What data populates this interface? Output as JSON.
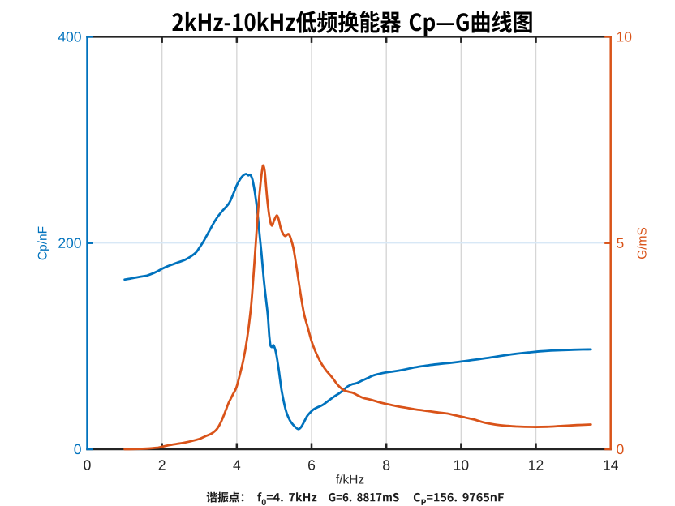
{
  "figure": {
    "background": "#ffffff",
    "title": "2kHz-10kHz低频换能器 Cp—G曲线图",
    "title_color": "#000000",
    "text_color": "#262626"
  },
  "chart_data": {
    "type": "line",
    "title": "2kHz-10kHz低频换能器 Cp—G曲线图",
    "xlabel": "f/kHz",
    "xlim": [
      0,
      14
    ],
    "xticks": [
      0,
      2,
      4,
      6,
      8,
      10,
      12,
      14
    ],
    "grid": {
      "x": [
        2,
        4,
        6,
        8,
        10,
        12
      ],
      "y_left": [
        200
      ]
    },
    "axes": {
      "left": {
        "label": "Cp/nF",
        "color": "#0072BD",
        "lim": [
          0,
          400
        ],
        "ticks": [
          0,
          200,
          400
        ]
      },
      "right": {
        "label": "G/mS",
        "color": "#D95319",
        "lim": [
          0,
          10
        ],
        "ticks": [
          0,
          5,
          10
        ]
      }
    },
    "series": [
      {
        "name": "Cp",
        "axis": "left",
        "color": "#0072BD",
        "x": [
          1.0,
          1.15,
          1.3,
          1.45,
          1.6,
          1.75,
          1.9,
          2.0,
          2.15,
          2.3,
          2.45,
          2.6,
          2.75,
          2.9,
          3.0,
          3.1,
          3.2,
          3.3,
          3.4,
          3.5,
          3.6,
          3.7,
          3.8,
          3.9,
          4.0,
          4.1,
          4.18,
          4.25,
          4.31,
          4.36,
          4.42,
          4.48,
          4.54,
          4.6,
          4.66,
          4.72,
          4.78,
          4.83,
          4.87,
          4.9,
          4.94,
          4.98,
          5.02,
          5.06,
          5.1,
          5.15,
          5.2,
          5.27,
          5.34,
          5.42,
          5.5,
          5.58,
          5.65,
          5.72,
          5.8,
          5.88,
          5.96,
          6.05,
          6.15,
          6.3,
          6.45,
          6.6,
          6.75,
          6.87,
          6.97,
          7.08,
          7.2,
          7.35,
          7.5,
          7.65,
          7.8,
          8.0,
          8.2,
          8.45,
          8.7,
          8.95,
          9.2,
          9.45,
          9.7,
          10.0,
          10.3,
          10.6,
          10.9,
          11.2,
          11.5,
          11.8,
          12.1,
          12.4,
          12.7,
          13.0,
          13.25,
          13.47
        ],
        "y": [
          164.5,
          165.5,
          166.5,
          167.5,
          168.5,
          170.5,
          173,
          175,
          177.5,
          179.5,
          181.5,
          183.5,
          186.5,
          190.5,
          195.5,
          201,
          207.5,
          214,
          220.5,
          226,
          230.5,
          234.5,
          239,
          247,
          256,
          262.5,
          265.8,
          267,
          265.6,
          266.2,
          261.5,
          250,
          234,
          212,
          190,
          166,
          146,
          130,
          110,
          101,
          99,
          101,
          97.5,
          91.5,
          83,
          70,
          57,
          44,
          34.5,
          28,
          24,
          21,
          19.5,
          21.5,
          26.5,
          32,
          35.5,
          38.5,
          40.5,
          43,
          47,
          51,
          54.5,
          58,
          61,
          63,
          64,
          66.5,
          69,
          71.5,
          73,
          74.5,
          75.5,
          77,
          79,
          80.5,
          81.8,
          82.8,
          83.7,
          85,
          86.5,
          88,
          89.6,
          91.2,
          92.7,
          93.8,
          94.9,
          95.6,
          96.1,
          96.5,
          96.7,
          96.8
        ]
      },
      {
        "name": "G",
        "axis": "right",
        "color": "#D95319",
        "x": [
          1.0,
          1.3,
          1.6,
          1.9,
          2.0,
          2.2,
          2.4,
          2.6,
          2.8,
          3.0,
          3.1,
          3.2,
          3.28,
          3.36,
          3.44,
          3.5,
          3.56,
          3.63,
          3.7,
          3.78,
          3.88,
          3.99,
          4.08,
          4.18,
          4.28,
          4.38,
          4.45,
          4.52,
          4.58,
          4.63,
          4.68,
          4.71,
          4.75,
          4.79,
          4.84,
          4.89,
          4.94,
          5.0,
          5.07,
          5.12,
          5.18,
          5.24,
          5.3,
          5.38,
          5.44,
          5.52,
          5.6,
          5.7,
          5.8,
          5.9,
          6.0,
          6.1,
          6.25,
          6.4,
          6.55,
          6.7,
          6.85,
          7.0,
          7.1,
          7.25,
          7.4,
          7.55,
          7.7,
          7.85,
          8.0,
          8.25,
          8.5,
          8.75,
          9.0,
          9.3,
          9.6,
          9.85,
          10.1,
          10.35,
          10.6,
          10.9,
          11.2,
          11.5,
          11.9,
          12.3,
          12.7,
          13.1,
          13.47
        ],
        "y": [
          0.0,
          0.005,
          0.015,
          0.04,
          0.06,
          0.1,
          0.13,
          0.16,
          0.2,
          0.25,
          0.29,
          0.33,
          0.36,
          0.4,
          0.46,
          0.53,
          0.63,
          0.77,
          0.93,
          1.12,
          1.3,
          1.5,
          1.8,
          2.18,
          2.7,
          3.45,
          4.25,
          5.15,
          5.9,
          6.4,
          6.78,
          6.88,
          6.72,
          6.3,
          5.85,
          5.55,
          5.42,
          5.55,
          5.67,
          5.57,
          5.35,
          5.22,
          5.17,
          5.22,
          5.12,
          4.85,
          4.4,
          3.8,
          3.28,
          2.95,
          2.62,
          2.38,
          2.1,
          1.9,
          1.74,
          1.56,
          1.44,
          1.39,
          1.37,
          1.3,
          1.24,
          1.21,
          1.17,
          1.13,
          1.1,
          1.05,
          1.01,
          0.97,
          0.94,
          0.9,
          0.87,
          0.82,
          0.77,
          0.72,
          0.65,
          0.6,
          0.57,
          0.55,
          0.54,
          0.545,
          0.565,
          0.585,
          0.6
        ]
      }
    ],
    "annotation": {
      "text": "谐振点：f0=4. 7kHz   G=6. 8817mS   CP=156. 9765nF",
      "parts": [
        {
          "t": "谐振点：f"
        },
        {
          "t": "0",
          "sub": true
        },
        {
          "t": "=4. 7kHz   G=6. 8817mS   C"
        },
        {
          "t": "P",
          "sub": true
        },
        {
          "t": "=156. 9765nF"
        }
      ],
      "resonance": {
        "f0_kHz": 4.7,
        "G_mS": 6.8817,
        "Cp_nF": 156.9765
      }
    }
  }
}
